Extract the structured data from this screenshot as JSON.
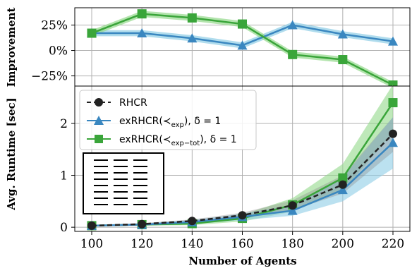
{
  "colors": {
    "rhcr": "#222222",
    "exp": "#3a87c0",
    "exp_band": "#8ecde6",
    "tot": "#3aa53a",
    "tot_band": "#93d88a",
    "grid": "#b0b0b0"
  },
  "chart_data": [
    {
      "type": "line",
      "ylabel": "Improvement",
      "x": [
        100,
        120,
        140,
        160,
        180,
        200,
        220
      ],
      "yticks": [
        "25%",
        "0%",
        "−25%"
      ],
      "ytick_values": [
        25,
        0,
        -25
      ],
      "ylim": [
        -35,
        42
      ],
      "series": [
        {
          "key": "exp",
          "values": [
            17,
            17,
            12,
            5,
            25,
            16,
            9
          ],
          "band": [
            3,
            3,
            3,
            3,
            3,
            3,
            3
          ]
        },
        {
          "key": "tot",
          "values": [
            17,
            36,
            32,
            26,
            -4,
            -9,
            -34
          ],
          "band": [
            3,
            3,
            3,
            3,
            3,
            3,
            3
          ]
        }
      ]
    },
    {
      "type": "line",
      "xlabel": "Number of Agents",
      "ylabel": "Avg. Runtime [sec]",
      "x": [
        100,
        120,
        140,
        160,
        180,
        200,
        220
      ],
      "xticks": [
        "100",
        "120",
        "140",
        "160",
        "180",
        "200",
        "220"
      ],
      "yticks": [
        "0",
        "1",
        "2"
      ],
      "ytick_values": [
        0,
        1,
        2
      ],
      "ylim": [
        -0.08,
        2.72
      ],
      "legend": "top-left",
      "series": [
        {
          "key": "rhcr",
          "name": "RHCR",
          "values": [
            0.03,
            0.06,
            0.12,
            0.23,
            0.42,
            0.82,
            1.8
          ],
          "lower": [
            0.02,
            0.04,
            0.09,
            0.17,
            0.33,
            0.65,
            1.45
          ],
          "upper": [
            0.04,
            0.08,
            0.15,
            0.28,
            0.52,
            1.0,
            2.12
          ]
        },
        {
          "key": "exp",
          "name": "exRHCR(≺",
          "sub": "exp",
          "suffix": "), δ = 1",
          "values": [
            0.03,
            0.05,
            0.1,
            0.2,
            0.32,
            0.72,
            1.63
          ],
          "lower": [
            0.02,
            0.03,
            0.06,
            0.14,
            0.22,
            0.5,
            1.13
          ],
          "upper": [
            0.04,
            0.07,
            0.14,
            0.26,
            0.43,
            0.96,
            2.12
          ]
        },
        {
          "key": "tot",
          "name": "exRHCR(≺",
          "sub": "exp−tot",
          "suffix": "), δ = 1",
          "values": [
            0.03,
            0.05,
            0.07,
            0.17,
            0.43,
            0.95,
            2.4
          ],
          "lower": [
            0.02,
            0.03,
            0.04,
            0.11,
            0.3,
            0.7,
            1.82
          ],
          "upper": [
            0.04,
            0.07,
            0.1,
            0.24,
            0.56,
            1.22,
            2.75
          ]
        }
      ]
    }
  ]
}
